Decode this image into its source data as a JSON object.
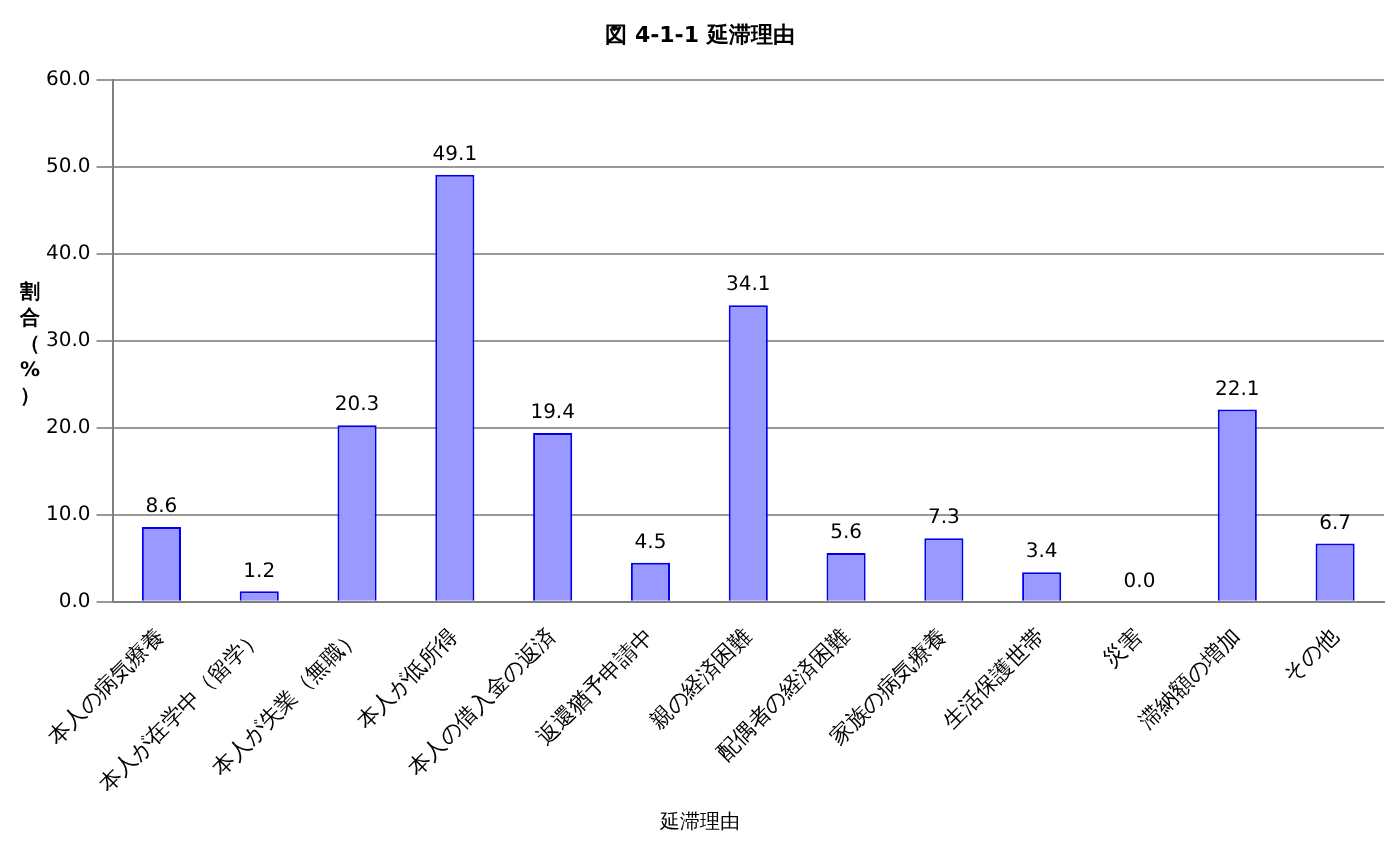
{
  "chart_data": {
    "type": "bar",
    "title": "図 4-1-1 延滞理由",
    "xlabel": "延滞理由",
    "ylabel": "割合（%）",
    "categories": [
      "本人の病気療養",
      "本人が在学中（留学）",
      "本人が失業（無職）",
      "本人が低所得",
      "本人の借入金の返済",
      "返還猶予申請中",
      "親の経済困難",
      "配偶者の経済困難",
      "家族の病気療養",
      "生活保護世帯",
      "災害",
      "滞納額の増加",
      "その他"
    ],
    "values": [
      8.6,
      1.2,
      20.3,
      49.1,
      19.4,
      4.5,
      34.1,
      5.6,
      7.3,
      3.4,
      0.0,
      22.1,
      6.7
    ],
    "value_labels": [
      "8.6",
      "1.2",
      "20.3",
      "49.1",
      "19.4",
      "4.5",
      "34.1",
      "5.6",
      "7.3",
      "3.4",
      "0.0",
      "22.1",
      "6.7"
    ],
    "color": "#9999ff",
    "ylim": [
      0,
      60
    ],
    "yticks": [
      {
        "value": 0,
        "label": "0.0"
      },
      {
        "value": 10,
        "label": "10.0"
      },
      {
        "value": 20,
        "label": "20.0"
      },
      {
        "value": 30,
        "label": "30.0"
      },
      {
        "value": 40,
        "label": "40.0"
      },
      {
        "value": 50,
        "label": "50.0"
      },
      {
        "value": 60,
        "label": "60.0"
      }
    ],
    "grid": "y",
    "legend": false
  }
}
